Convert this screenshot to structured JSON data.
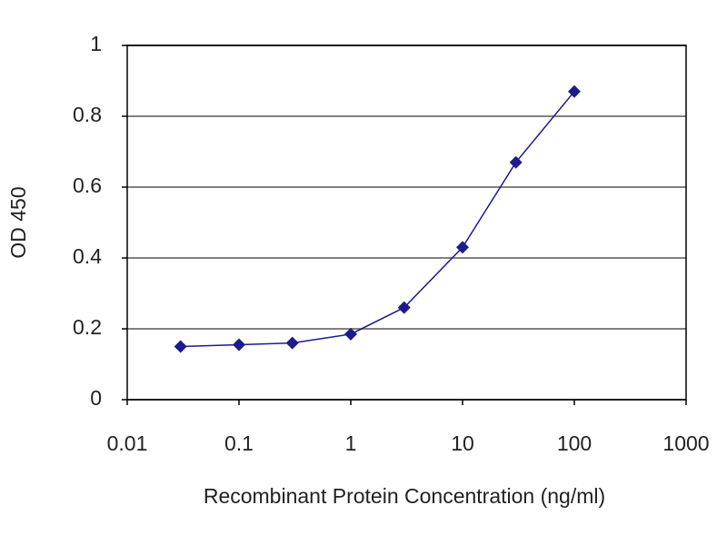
{
  "chart_data": {
    "type": "line",
    "x_label": "Recombinant Protein Concentration (ng/ml)",
    "y_label": "OD 450",
    "x": [
      0.03,
      0.1,
      0.3,
      1,
      3,
      10,
      30,
      100
    ],
    "series": [
      {
        "color": "#1c1c8c",
        "values": [
          0.15,
          0.155,
          0.16,
          0.185,
          0.26,
          0.43,
          0.67,
          0.87
        ]
      }
    ],
    "xscale": "log",
    "xlim": [
      0.01,
      1000
    ],
    "xticks": [
      0.01,
      0.1,
      1,
      10,
      100,
      1000
    ],
    "ylim": [
      0,
      1
    ],
    "yticks": [
      0,
      0.2,
      0.4,
      0.6,
      0.8,
      1
    ],
    "grid": true
  }
}
